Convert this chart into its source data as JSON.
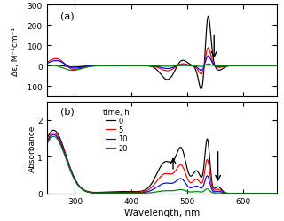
{
  "wavelength_range": [
    250,
    660
  ],
  "times": [
    0,
    5,
    10,
    20
  ],
  "colors": [
    "black",
    "red",
    "blue",
    "green"
  ],
  "panel_a_label": "(a)",
  "panel_b_label": "(b)",
  "xlabel": "Wavelength, nm",
  "ylabel_a": "Δε, M⁻¹cm⁻¹",
  "ylabel_b": "Absorbance",
  "ylim_a": [
    -150,
    300
  ],
  "ylim_b": [
    0,
    2.5
  ],
  "yticks_a": [
    -100,
    0,
    100,
    200,
    300
  ],
  "yticks_b": [
    0,
    1,
    2
  ],
  "xticks": [
    300,
    400,
    500,
    600
  ],
  "legend_labels": [
    "0",
    "5",
    "10",
    "20"
  ],
  "legend_title": "time, h",
  "background_color": "#ffffff"
}
